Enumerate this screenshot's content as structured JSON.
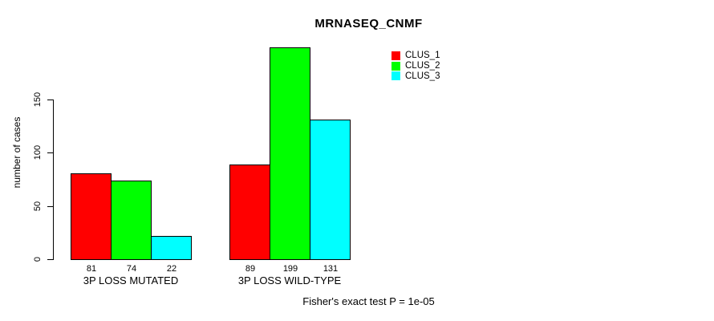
{
  "title": "MRNASEQ_CNMF",
  "ylabel": "number of cases",
  "footer": "Fisher's exact test P = 1e-05",
  "legend": [
    {
      "label": "CLUS_1",
      "color": "#FF0000"
    },
    {
      "label": "CLUS_2",
      "color": "#00FF00"
    },
    {
      "label": "CLUS_3",
      "color": "#00FFFF"
    }
  ],
  "chart_data": {
    "type": "bar",
    "title": "MRNASEQ_CNMF",
    "ylabel": "number of cases",
    "xlabel": "",
    "categories": [
      "3P LOSS MUTATED",
      "3P LOSS WILD-TYPE"
    ],
    "series": [
      {
        "name": "CLUS_1",
        "color": "#FF0000",
        "values": [
          81,
          89
        ]
      },
      {
        "name": "CLUS_2",
        "color": "#00FF00",
        "values": [
          74,
          199
        ]
      },
      {
        "name": "CLUS_3",
        "color": "#00FFFF",
        "values": [
          22,
          131
        ]
      }
    ],
    "yticks": [
      0,
      50,
      100,
      150
    ],
    "ylim": [
      0,
      150
    ],
    "grid": false,
    "bar_value_labels_shown": true,
    "legend_position": "top-right",
    "annotation": "Fisher's exact test P = 1e-05",
    "bar_border_color": "#000000",
    "background_color": "#FFFFFF"
  }
}
